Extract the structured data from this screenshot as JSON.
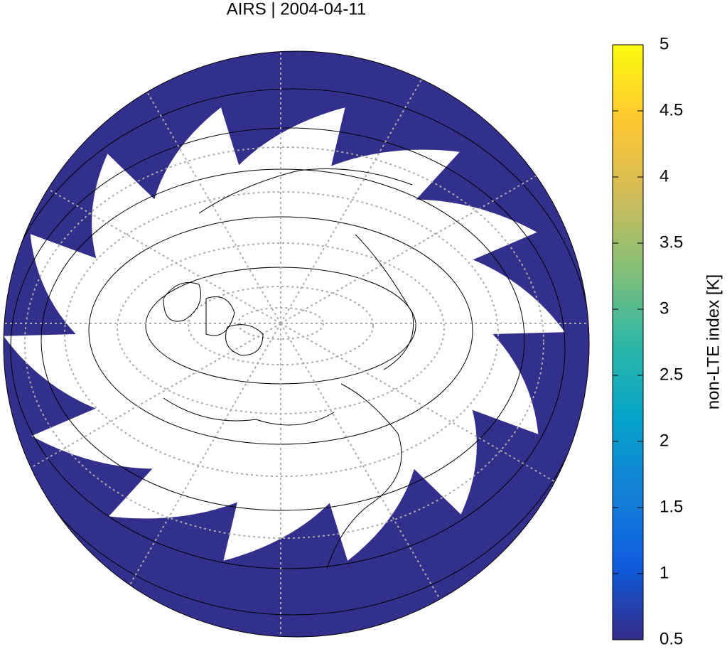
{
  "title": "AIRS | 2004-04-11",
  "colorbar": {
    "label": "non-LTE index [K]",
    "lim": [
      0.5,
      5
    ],
    "ticks": [
      0.5,
      1,
      1.5,
      2,
      2.5,
      3,
      3.5,
      4,
      4.5,
      5
    ],
    "colormap": [
      "#352a87",
      "#0f5cdd",
      "#1481d6",
      "#06a4ca",
      "#2eb7a4",
      "#87bf77",
      "#d1bb59",
      "#fec832",
      "#f9fb0e"
    ]
  }
}
